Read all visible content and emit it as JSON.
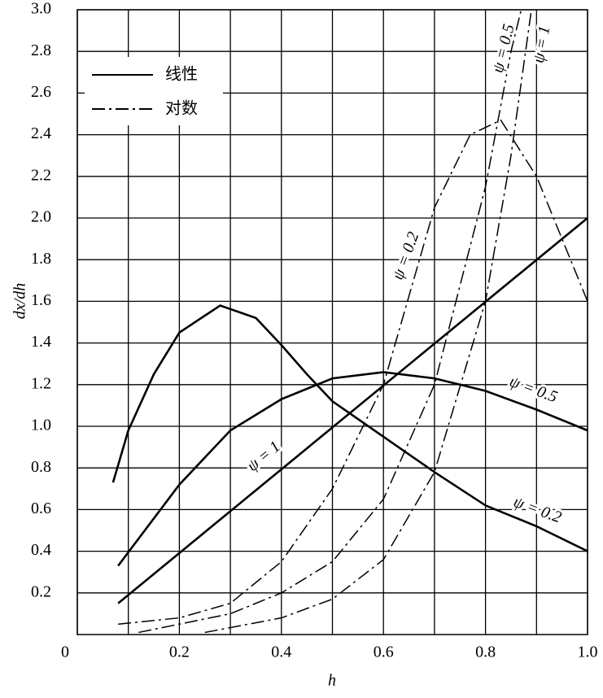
{
  "chart_data": {
    "type": "line",
    "y_label": "dx/dh",
    "x_label": "h",
    "xlim": [
      0,
      1
    ],
    "ylim": [
      0,
      3
    ],
    "xticks": [
      0,
      0.2,
      0.4,
      0.6,
      0.8,
      {
        "value": 1,
        "label": "1.0"
      }
    ],
    "x_minor_ticks": [
      0.1,
      0.3,
      0.5,
      0.7,
      0.9
    ],
    "yticks": [
      0.2,
      0.4,
      0.6,
      0.8,
      {
        "value": 1,
        "label": "1.0"
      },
      1.2,
      1.4,
      1.6,
      1.8,
      {
        "value": 2,
        "label": "2.0"
      },
      2.2,
      2.4,
      2.6,
      2.8,
      {
        "value": 3,
        "label": "3.0"
      }
    ],
    "grid": true,
    "legend": [
      {
        "name": "线性",
        "style": "solid"
      },
      {
        "name": "对数",
        "style": "dashdot"
      }
    ],
    "legend_position": "upper left",
    "series": [
      {
        "name": "ψ = 1",
        "style": "solid",
        "color": "#000000",
        "x": [
          0.08,
          1.0
        ],
        "values": [
          0.15,
          2.0
        ]
      },
      {
        "name": "ψ = 0.5",
        "style": "solid",
        "color": "#000000",
        "x": [
          0.08,
          0.2,
          0.3,
          0.4,
          0.5,
          0.6,
          0.7,
          0.8,
          0.9,
          1.0
        ],
        "values": [
          0.33,
          0.72,
          0.98,
          1.13,
          1.23,
          1.26,
          1.23,
          1.17,
          1.08,
          0.98
        ]
      },
      {
        "name": "ψ = 0.2",
        "style": "solid",
        "color": "#000000",
        "x": [
          0.07,
          0.1,
          0.15,
          0.2,
          0.28,
          0.35,
          0.4,
          0.45,
          0.5,
          0.6,
          0.7,
          0.8,
          0.9,
          1.0
        ],
        "values": [
          0.73,
          0.98,
          1.25,
          1.45,
          1.58,
          1.52,
          1.39,
          1.25,
          1.12,
          0.95,
          0.78,
          0.62,
          0.52,
          0.4
        ]
      },
      {
        "name": "ψ = 0.2",
        "style": "dashdot",
        "color": "#000000",
        "x": [
          0.08,
          0.2,
          0.3,
          0.4,
          0.5,
          0.6,
          0.7,
          0.77,
          0.83,
          0.9,
          1.0
        ],
        "values": [
          0.05,
          0.08,
          0.15,
          0.35,
          0.7,
          1.2,
          2.05,
          2.4,
          2.47,
          2.2,
          1.6
        ]
      },
      {
        "name": "ψ = 0.5",
        "style": "dashdot",
        "color": "#000000",
        "x": [
          0.12,
          0.3,
          0.4,
          0.5,
          0.6,
          0.7,
          0.8,
          0.85,
          0.87
        ],
        "values": [
          0.01,
          0.1,
          0.2,
          0.35,
          0.65,
          1.2,
          2.15,
          2.8,
          3.0
        ]
      },
      {
        "name": "ψ = 1",
        "style": "dashdot",
        "color": "#000000",
        "x": [
          0.25,
          0.4,
          0.5,
          0.6,
          0.7,
          0.8,
          0.85,
          0.89
        ],
        "values": [
          0.01,
          0.08,
          0.17,
          0.36,
          0.78,
          1.6,
          2.3,
          3.0
        ]
      }
    ]
  }
}
